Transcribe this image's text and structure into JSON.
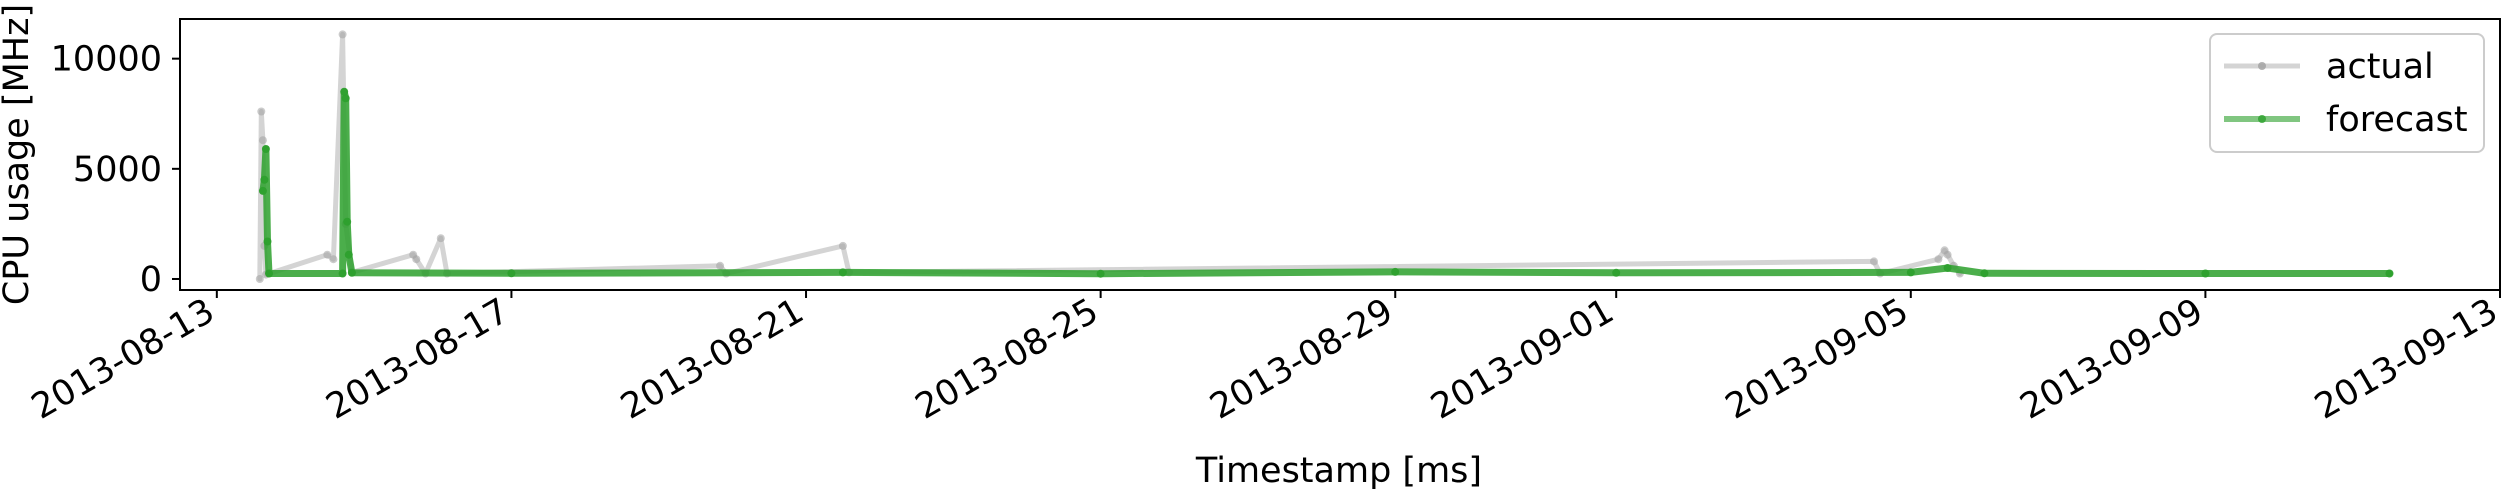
{
  "chart_data": {
    "type": "line",
    "title": "",
    "xlabel": "Timestamp [ms]",
    "ylabel": "CPU usage [MHz]",
    "x_range": [
      "2013-08-12T12:00",
      "2013-09-13T00:00"
    ],
    "ylim": [
      -500,
      11800
    ],
    "y_ticks": [
      0,
      5000,
      10000
    ],
    "y_tick_labels": [
      "0",
      "5000",
      "10000"
    ],
    "x_ticks": [
      "2013-08-13",
      "2013-08-17",
      "2013-08-21",
      "2013-08-25",
      "2013-08-29",
      "2013-09-01",
      "2013-09-05",
      "2013-09-09",
      "2013-09-13"
    ],
    "x_tick_labels": [
      "2013-08-13",
      "2013-08-17",
      "2013-08-21",
      "2013-08-25",
      "2013-08-29",
      "2013-09-01",
      "2013-09-05",
      "2013-09-09",
      "2013-09-13"
    ],
    "grid": false,
    "legend_position": "top-right",
    "series": [
      {
        "name": "actual",
        "color": "#a0a0a0",
        "points": [
          [
            "2013-08-13T14:00",
            0
          ],
          [
            "2013-08-13T14:30",
            7600
          ],
          [
            "2013-08-13T15:00",
            6300
          ],
          [
            "2013-08-13T15:30",
            1500
          ],
          [
            "2013-08-13T16:00",
            200
          ],
          [
            "2013-08-14T12:00",
            1100
          ],
          [
            "2013-08-14T14:00",
            900
          ],
          [
            "2013-08-14T17:00",
            11100
          ],
          [
            "2013-08-14T18:00",
            2500
          ],
          [
            "2013-08-14T20:00",
            300
          ],
          [
            "2013-08-15T16:00",
            1100
          ],
          [
            "2013-08-15T17:00",
            900
          ],
          [
            "2013-08-15T20:00",
            250
          ],
          [
            "2013-08-16T01:00",
            1850
          ],
          [
            "2013-08-16T03:00",
            250
          ],
          [
            "2013-08-19T20:00",
            600
          ],
          [
            "2013-08-19T22:00",
            250
          ],
          [
            "2013-08-21T12:00",
            1500
          ],
          [
            "2013-08-21T14:00",
            300
          ],
          [
            "2013-09-04T12:00",
            800
          ],
          [
            "2013-09-04T14:00",
            250
          ],
          [
            "2013-09-05T09:00",
            900
          ],
          [
            "2013-09-05T11:00",
            1300
          ],
          [
            "2013-09-05T12:00",
            1100
          ],
          [
            "2013-09-05T14:00",
            600
          ],
          [
            "2013-09-05T16:00",
            250
          ]
        ]
      },
      {
        "name": "forecast",
        "color": "#2ca02c",
        "points": [
          [
            "2013-08-13T15:00",
            4000
          ],
          [
            "2013-08-13T15:30",
            4500
          ],
          [
            "2013-08-13T16:00",
            5900
          ],
          [
            "2013-08-13T16:30",
            1700
          ],
          [
            "2013-08-13T17:00",
            250
          ],
          [
            "2013-08-14T17:00",
            250
          ],
          [
            "2013-08-14T17:30",
            8500
          ],
          [
            "2013-08-14T18:00",
            8200
          ],
          [
            "2013-08-14T18:30",
            2600
          ],
          [
            "2013-08-14T19:00",
            1100
          ],
          [
            "2013-08-14T20:00",
            280
          ],
          [
            "2013-08-17T00:00",
            260
          ],
          [
            "2013-08-21T12:00",
            300
          ],
          [
            "2013-08-25T00:00",
            240
          ],
          [
            "2013-08-29T00:00",
            320
          ],
          [
            "2013-09-01T00:00",
            280
          ],
          [
            "2013-09-05T00:00",
            300
          ],
          [
            "2013-09-05T12:00",
            500
          ],
          [
            "2013-09-06T00:00",
            260
          ],
          [
            "2013-09-09T00:00",
            250
          ],
          [
            "2013-09-11T12:00",
            250
          ]
        ]
      }
    ]
  }
}
